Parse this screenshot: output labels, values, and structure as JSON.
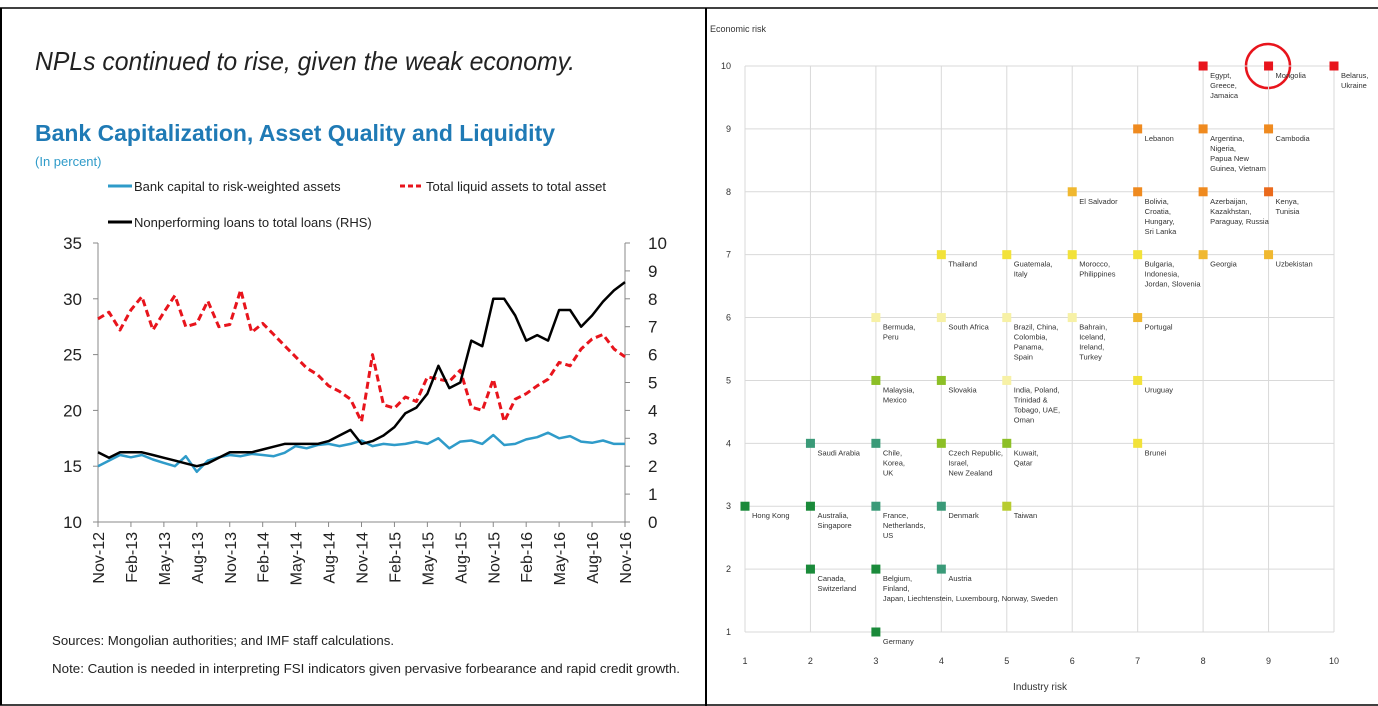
{
  "heading": "NPLs continued to rise, given the weak economy.",
  "sources": "Sources: Mongolian authorities; and IMF staff calculations.",
  "note": "Note: Caution is needed in interpreting FSI indicators given pervasive forbearance and rapid credit growth.",
  "chart_data": [
    {
      "type": "line",
      "title": "Bank Capitalization, Asset Quality and Liquidity",
      "subtitle": "(In percent)",
      "categories": [
        "Nov-12",
        null,
        null,
        "Feb-13",
        null,
        null,
        "May-13",
        null,
        null,
        "Aug-13",
        null,
        null,
        "Nov-13",
        null,
        null,
        "Feb-14",
        null,
        null,
        "May-14",
        null,
        null,
        "Aug-14",
        null,
        null,
        "Nov-14",
        null,
        null,
        "Feb-15",
        null,
        null,
        "May-15",
        null,
        null,
        "Aug-15",
        null,
        null,
        "Nov-15",
        null,
        null,
        "Feb-16",
        null,
        null,
        "May-16",
        null,
        null,
        "Aug-16",
        null,
        null,
        "Nov-16"
      ],
      "ylim": [
        10,
        35
      ],
      "yticks": [
        10,
        15,
        20,
        25,
        30,
        35
      ],
      "y2lim": [
        0,
        10
      ],
      "y2ticks": [
        0,
        1,
        2,
        3,
        4,
        5,
        6,
        7,
        8,
        9,
        10
      ],
      "series": [
        {
          "name": "Bank capital to risk-weighted assets",
          "color": "#2f9bc9",
          "style": "solid",
          "values": [
            15.0,
            15.5,
            16.0,
            15.8,
            16.0,
            15.6,
            15.3,
            15.0,
            15.9,
            14.5,
            15.5,
            15.8,
            16.0,
            15.9,
            16.1,
            16.0,
            15.9,
            16.2,
            16.8,
            16.6,
            16.9,
            17.0,
            16.8,
            17.0,
            17.3,
            16.8,
            17.0,
            16.9,
            17.0,
            17.2,
            17.0,
            17.5,
            16.6,
            17.2,
            17.3,
            17.0,
            17.8,
            16.9,
            17.0,
            17.4,
            17.6,
            18.0,
            17.5,
            17.7,
            17.2,
            17.1,
            17.3,
            17.0,
            17.0
          ]
        },
        {
          "name": "Total liquid assets to total asset",
          "color": "#e8141c",
          "style": "dashed",
          "values": [
            28.2,
            28.8,
            27.2,
            29.0,
            30.2,
            27.2,
            28.8,
            30.3,
            27.5,
            27.8,
            29.8,
            27.5,
            27.7,
            30.8,
            27.0,
            27.8,
            26.8,
            25.8,
            24.8,
            23.8,
            23.2,
            22.2,
            21.7,
            21.0,
            19.0,
            25.0,
            20.5,
            20.2,
            21.2,
            20.8,
            23.0,
            22.8,
            22.6,
            23.6,
            20.3,
            20.0,
            22.8,
            19.0,
            21.0,
            21.5,
            22.2,
            22.8,
            24.3,
            24.0,
            25.5,
            26.4,
            26.8,
            25.5,
            24.8
          ]
        },
        {
          "name": "Nonperforming loans to total loans (RHS)",
          "color": "#000000",
          "style": "solid",
          "axis": "y2",
          "values": [
            2.5,
            2.3,
            2.5,
            2.5,
            2.5,
            2.4,
            2.3,
            2.2,
            2.1,
            2.0,
            2.1,
            2.3,
            2.5,
            2.5,
            2.5,
            2.6,
            2.7,
            2.8,
            2.8,
            2.8,
            2.8,
            2.9,
            3.1,
            3.3,
            2.8,
            2.9,
            3.1,
            3.4,
            3.9,
            4.1,
            4.6,
            5.6,
            4.8,
            5.0,
            6.5,
            6.3,
            8.0,
            8.0,
            7.4,
            6.5,
            6.7,
            6.5,
            7.6,
            7.6,
            7.0,
            7.4,
            7.9,
            8.3,
            8.6
          ]
        }
      ]
    },
    {
      "type": "scatter",
      "ylabel": "Economic risk",
      "xlabel": "Industry risk",
      "xlim": [
        1,
        10
      ],
      "ylim": [
        1,
        10
      ],
      "xticks": [
        1,
        2,
        3,
        4,
        5,
        6,
        7,
        8,
        9,
        10
      ],
      "yticks": [
        1,
        2,
        3,
        4,
        5,
        6,
        7,
        8,
        9,
        10
      ],
      "grid": true,
      "x": [
        1,
        2,
        2,
        2,
        3,
        3,
        3,
        3,
        3,
        3,
        4,
        4,
        4,
        4,
        4,
        4,
        5,
        5,
        5,
        5,
        5,
        6,
        6,
        6,
        7,
        7,
        7,
        7,
        7,
        7,
        8,
        8,
        8,
        8,
        9,
        9,
        9,
        9,
        10
      ],
      "y": [
        3,
        4,
        3,
        2,
        6,
        5,
        4,
        3,
        2,
        1,
        7,
        6,
        5,
        4,
        3,
        2,
        7,
        6,
        5,
        4,
        3,
        8,
        7,
        6,
        9,
        8,
        7,
        6,
        5,
        4,
        10,
        9,
        8,
        7,
        10,
        9,
        8,
        7,
        10
      ],
      "colors": [
        "#1a8a3a",
        "#3a9a78",
        "#1a8a3a",
        "#1a8a3a",
        "#f7f1a6",
        "#8cbf26",
        "#3a9a78",
        "#3a9a78",
        "#1a8a3a",
        "#1a8a3a",
        "#f2e23a",
        "#f7f1a6",
        "#8cbf26",
        "#8cbf26",
        "#3a9a78",
        "#3a9a78",
        "#f2e23a",
        "#f7f1a6",
        "#f7f1a6",
        "#8cbf26",
        "#b8cc30",
        "#f0b830",
        "#f2e23a",
        "#f7f1a6",
        "#ef8a1f",
        "#ef8a1f",
        "#f2e23a",
        "#f0b830",
        "#f2e23a",
        "#f2e23a",
        "#e8141c",
        "#ef8a1f",
        "#ef8a1f",
        "#f0b830",
        "#e8141c",
        "#ef8a1f",
        "#ea6a1c",
        "#f0b830",
        "#e8141c"
      ],
      "labels": [
        [
          "Hong Kong"
        ],
        [
          "Saudi Arabia"
        ],
        [
          "Australia,",
          "Singapore"
        ],
        [
          "Canada,",
          "Switzerland"
        ],
        [
          "Bermuda,",
          "Peru"
        ],
        [
          "Malaysia,",
          "Mexico"
        ],
        [
          "Chile,",
          "Korea,",
          "UK"
        ],
        [
          "France,",
          "Netherlands,",
          "US"
        ],
        [
          "Belgium,",
          "Finland,",
          "Japan, Liechtenstein, Luxembourg, Norway, Sweden"
        ],
        [
          "Germany"
        ],
        [
          "Thailand"
        ],
        [
          "South Africa"
        ],
        [
          "Slovakia"
        ],
        [
          "Czech Republic,",
          "Israel,",
          "New Zealand"
        ],
        [
          "Denmark"
        ],
        [
          "Austria"
        ],
        [
          "Guatemala,",
          "Italy"
        ],
        [
          "Brazil, China,",
          "Colombia,",
          "Panama,",
          "Spain"
        ],
        [
          "India, Poland,",
          "Trinidad &",
          "Tobago, UAE,",
          "Oman"
        ],
        [
          "Kuwait,",
          "Qatar"
        ],
        [
          "Taiwan"
        ],
        [
          "El Salvador"
        ],
        [
          "Morocco,",
          "Philippines"
        ],
        [
          "Bahrain,",
          "Iceland,",
          "Ireland,",
          "Turkey"
        ],
        [
          "Lebanon"
        ],
        [
          "Bolivia,",
          "Croatia,",
          "Hungary,",
          "Sri Lanka"
        ],
        [
          "Bulgaria,",
          "Indonesia,",
          "Jordan, Slovenia"
        ],
        [
          "Portugal"
        ],
        [
          "Uruguay"
        ],
        [
          "Brunei"
        ],
        [
          "Egypt,",
          "Greece,",
          "Jamaica"
        ],
        [
          "Argentina,",
          "Nigeria,",
          "Papua New",
          "Guinea, Vietnam"
        ],
        [
          "Azerbaijan,",
          "Kazakhstan,",
          "Paraguay, Russia"
        ],
        [
          "Georgia"
        ],
        [
          "Mongolia"
        ],
        [
          "Cambodia"
        ],
        [
          "Kenya,",
          "Tunisia"
        ],
        [
          "Uzbekistan"
        ],
        [
          "Belarus,",
          "Ukraine"
        ]
      ]
    }
  ]
}
